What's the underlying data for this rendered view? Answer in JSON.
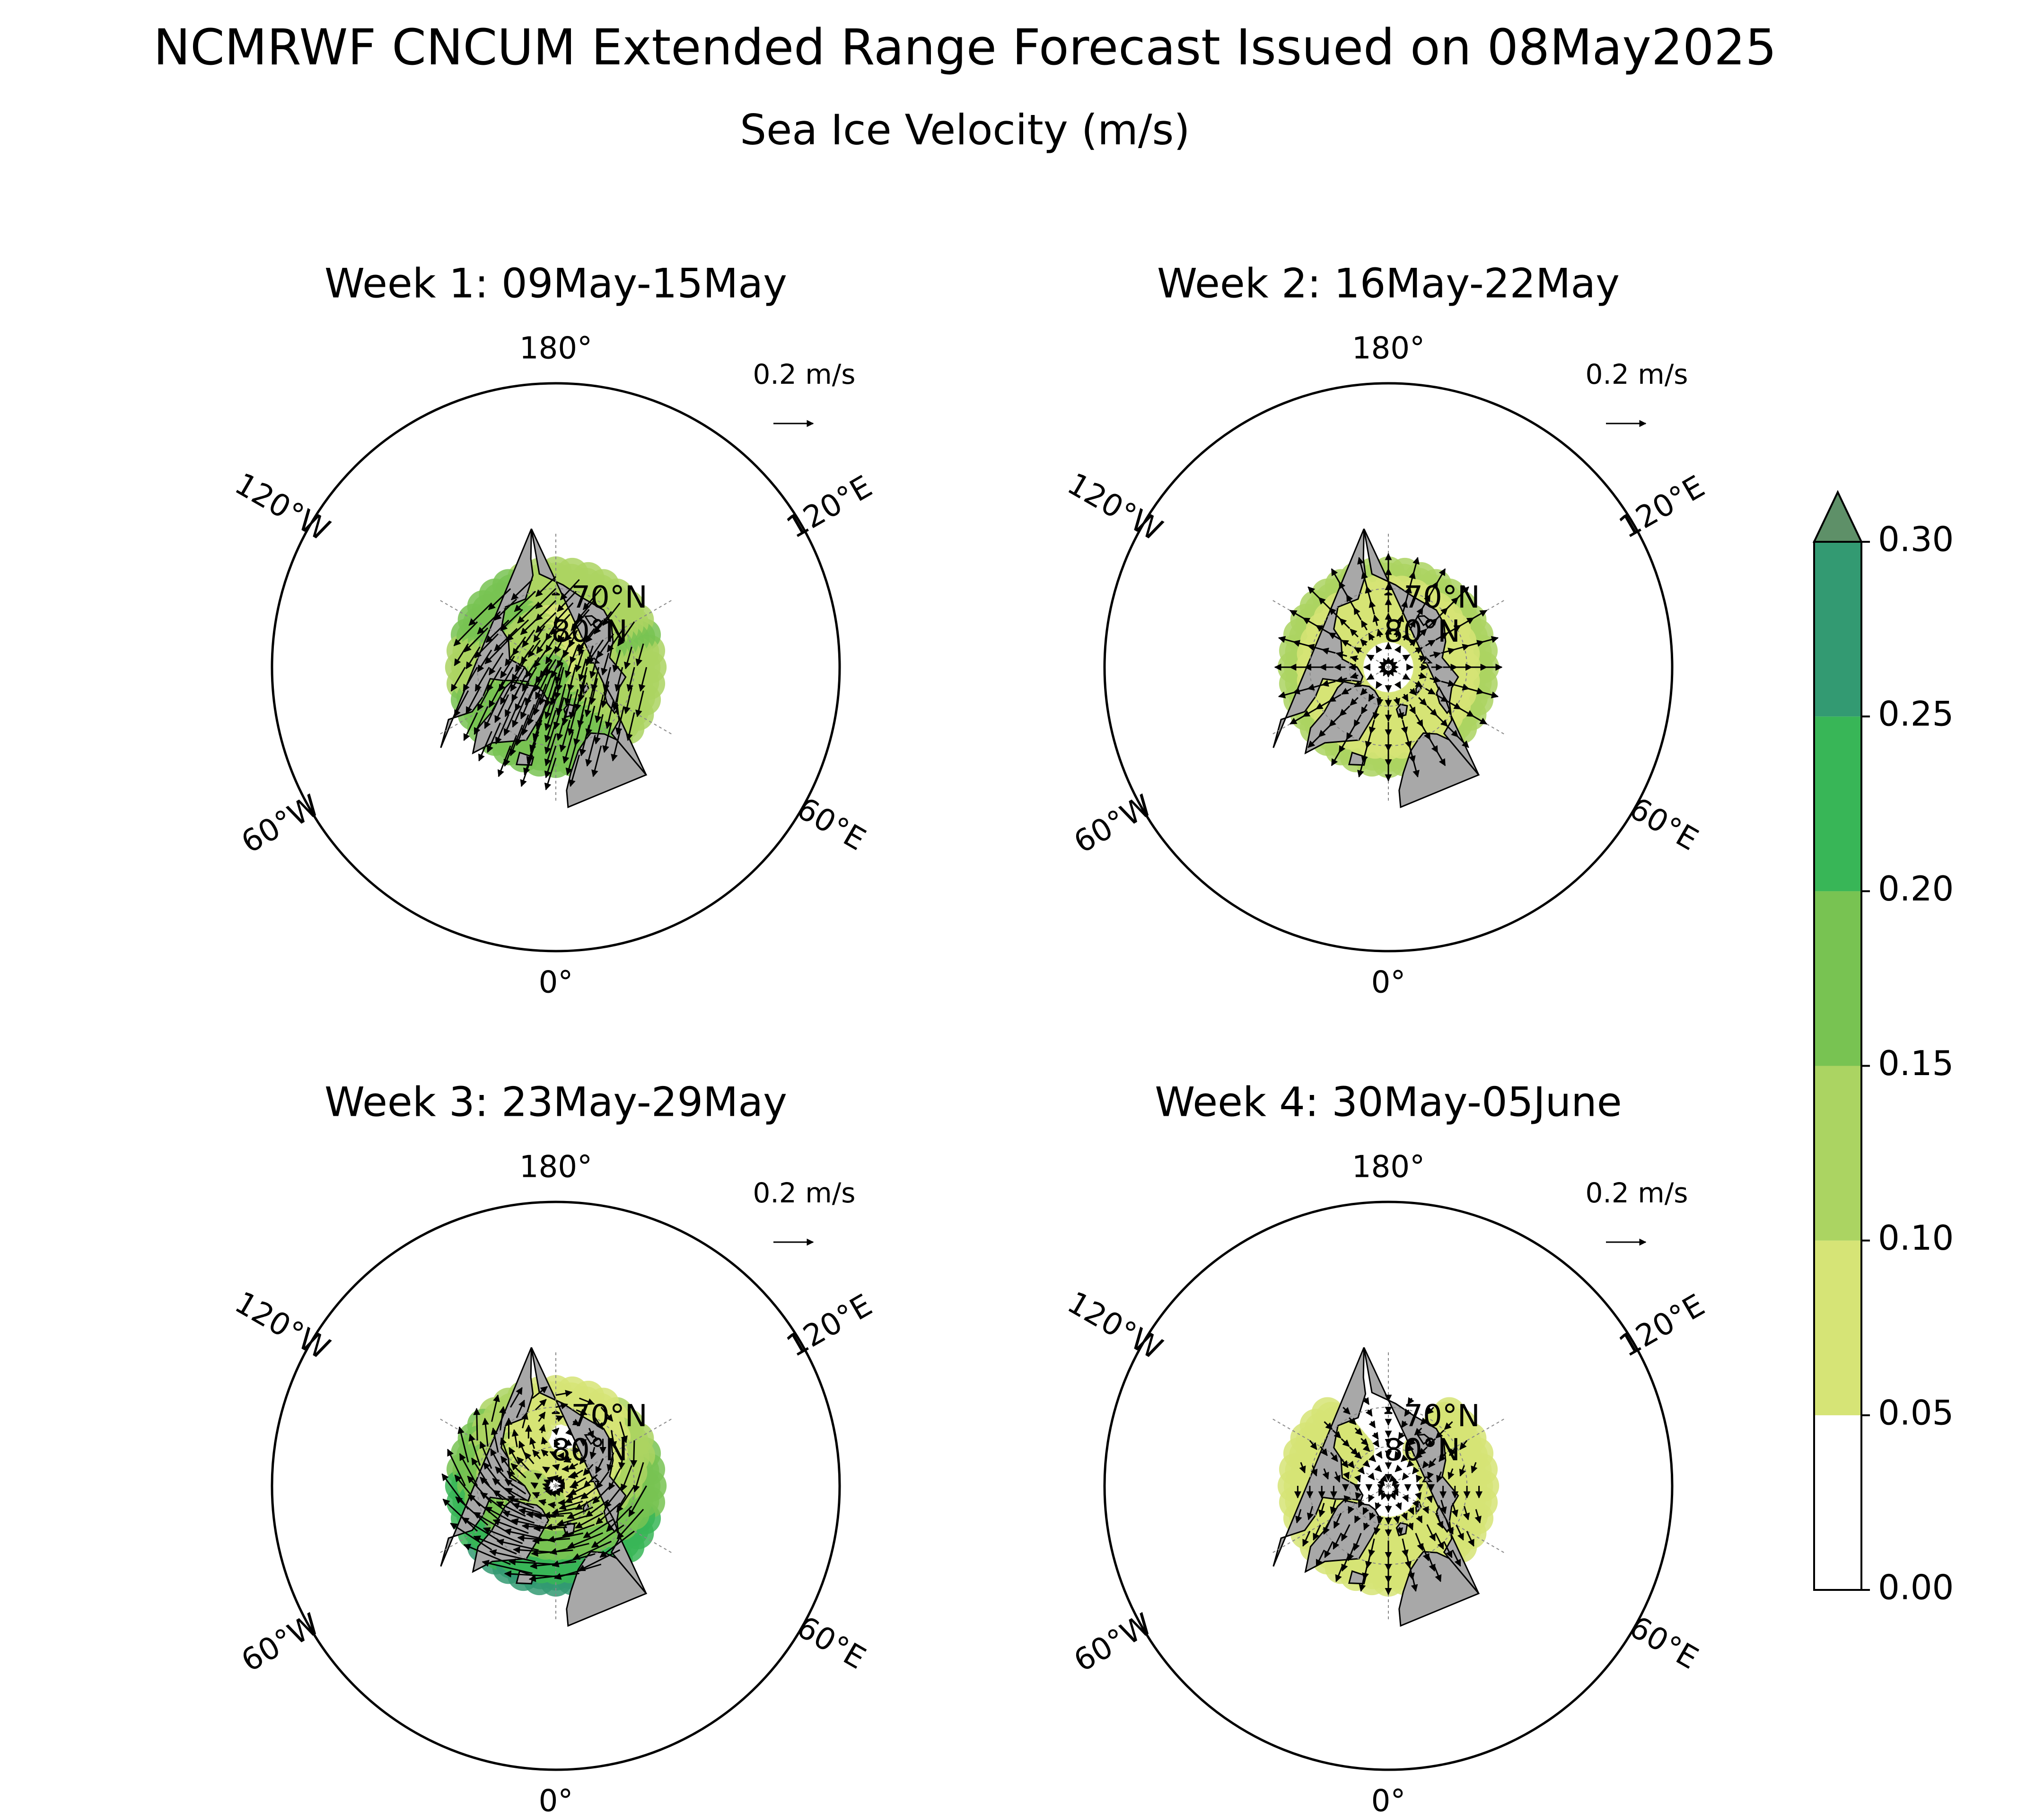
{
  "title": "NCMRWF CNCUM Extended Range Forecast Issued on 08May2025",
  "subtitle": "Sea Ice Velocity (m/s)",
  "reference_vector_label": "0.2 m/s",
  "lat_labels": [
    "70°N",
    "80°N"
  ],
  "lon_labels": {
    "top": "180°",
    "bottom": "0°",
    "upper_left": "120°W",
    "upper_right": "120°E",
    "lower_left": "60°W",
    "lower_right": "60°E"
  },
  "panels": [
    {
      "title": "Week 1: 09May-15May",
      "pattern": "transpolar"
    },
    {
      "title": "Week 2: 16May-22May",
      "pattern": "radial"
    },
    {
      "title": "Week 3: 23May-29May",
      "pattern": "beaufort"
    },
    {
      "title": "Week 4: 30May-05June",
      "pattern": "weak"
    }
  ],
  "colorbar": {
    "ticks": [
      "0.00",
      "0.05",
      "0.10",
      "0.15",
      "0.20",
      "0.25",
      "0.30"
    ],
    "bins": [
      {
        "from": 0.0,
        "to": 0.05,
        "color": "#ffffff"
      },
      {
        "from": 0.05,
        "to": 0.1,
        "color": "#d6e476"
      },
      {
        "from": 0.1,
        "to": 0.15,
        "color": "#abd462"
      },
      {
        "from": 0.15,
        "to": 0.2,
        "color": "#78c352"
      },
      {
        "from": 0.2,
        "to": 0.25,
        "color": "#38b657"
      },
      {
        "from": 0.25,
        "to": 0.3,
        "color": "#339a72"
      }
    ],
    "extend_color": "#5e9068"
  },
  "colors": {
    "land": "#a8a8a8",
    "coast": "#000000",
    "grid": "#888888"
  }
}
